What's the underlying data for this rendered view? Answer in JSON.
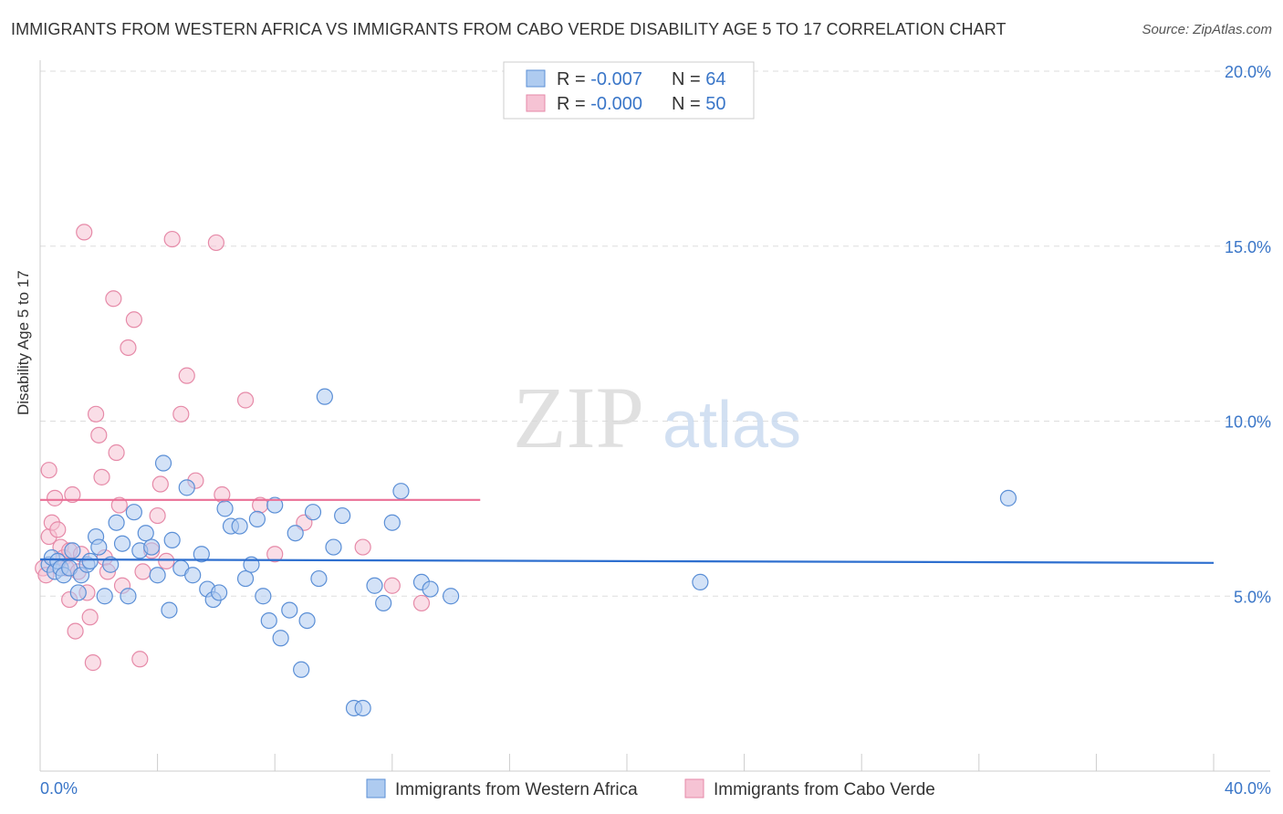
{
  "title": "IMMIGRANTS FROM WESTERN AFRICA VS IMMIGRANTS FROM CABO VERDE DISABILITY AGE 5 TO 17 CORRELATION CHART",
  "source": "Source: ZipAtlas.com",
  "watermark": {
    "zip": "ZIP",
    "atlas": "atlas"
  },
  "colors": {
    "blue": "#5b8fd6",
    "blue_fill": "#aecbf0",
    "blue_line": "#2e6fcf",
    "pink": "#e68aa8",
    "pink_fill": "#f6c3d4",
    "pink_line": "#ea6f96",
    "axis_text": "#3a76c8"
  },
  "legend": {
    "rows": [
      {
        "r_label": "R = ",
        "r_value": "-0.007",
        "n_label": "N = ",
        "n_value": "64"
      },
      {
        "r_label": "R = ",
        "r_value": "-0.000",
        "n_label": "N = ",
        "n_value": "50"
      }
    ]
  },
  "chart_data": {
    "type": "scatter",
    "xlabel": "",
    "ylabel": "Disability Age 5 to 17",
    "xlim": [
      0,
      40
    ],
    "ylim": [
      0,
      20
    ],
    "x_tick_labels": [
      "0.0%",
      "40.0%"
    ],
    "y_tick_labels": [
      "5.0%",
      "10.0%",
      "15.0%",
      "20.0%"
    ],
    "y_ticks": [
      5,
      10,
      15,
      20
    ],
    "legend": [
      "Immigrants from Western Africa",
      "Immigrants from Cabo Verde"
    ],
    "series": [
      {
        "name": "Immigrants from Western Africa",
        "trend": {
          "x": [
            0,
            40
          ],
          "y": [
            6.05,
            5.95
          ]
        },
        "x": [
          0.3,
          0.4,
          0.5,
          0.6,
          0.7,
          0.8,
          1.0,
          1.1,
          1.3,
          1.4,
          1.6,
          1.7,
          1.9,
          2.0,
          2.2,
          2.4,
          2.6,
          2.8,
          3.0,
          3.2,
          3.4,
          3.6,
          3.8,
          4.0,
          4.2,
          4.4,
          4.5,
          4.8,
          5.0,
          5.2,
          5.5,
          5.7,
          5.9,
          6.1,
          6.3,
          6.5,
          6.8,
          7.0,
          7.2,
          7.4,
          7.6,
          7.8,
          8.0,
          8.2,
          8.5,
          8.7,
          8.9,
          9.1,
          9.3,
          9.5,
          9.7,
          10.0,
          10.3,
          10.7,
          11.0,
          11.4,
          11.7,
          12.0,
          12.3,
          13.0,
          13.3,
          14.0,
          22.5,
          33.0
        ],
        "y": [
          5.9,
          6.1,
          5.7,
          6.0,
          5.8,
          5.6,
          5.8,
          6.3,
          5.1,
          5.6,
          5.9,
          6.0,
          6.7,
          6.4,
          5.0,
          5.9,
          7.1,
          6.5,
          5.0,
          7.4,
          6.3,
          6.8,
          6.4,
          5.6,
          8.8,
          4.6,
          6.6,
          5.8,
          8.1,
          5.6,
          6.2,
          5.2,
          4.9,
          5.1,
          7.5,
          7.0,
          7.0,
          5.5,
          5.9,
          7.2,
          5.0,
          4.3,
          7.6,
          3.8,
          4.6,
          6.8,
          2.9,
          4.3,
          7.4,
          5.5,
          10.7,
          6.4,
          7.3,
          1.8,
          1.8,
          5.3,
          4.8,
          7.1,
          8.0,
          5.4,
          5.2,
          5.0,
          5.4,
          7.8
        ]
      },
      {
        "name": "Immigrants from Cabo Verde",
        "trend": {
          "x": [
            0,
            15
          ],
          "y": [
            7.75,
            7.75
          ]
        },
        "x": [
          0.1,
          0.2,
          0.3,
          0.3,
          0.4,
          0.5,
          0.6,
          0.7,
          0.8,
          0.9,
          1.0,
          1.0,
          1.1,
          1.2,
          1.3,
          1.4,
          1.5,
          1.6,
          1.7,
          1.8,
          1.9,
          2.0,
          2.1,
          2.2,
          2.3,
          2.5,
          2.6,
          2.7,
          2.8,
          3.0,
          3.2,
          3.4,
          3.5,
          3.8,
          4.0,
          4.1,
          4.3,
          4.5,
          4.8,
          5.0,
          5.3,
          6.0,
          6.2,
          7.0,
          7.5,
          8.0,
          9.0,
          11.0,
          12.0,
          13.0
        ],
        "y": [
          5.8,
          5.6,
          6.7,
          8.6,
          7.1,
          7.8,
          6.9,
          6.4,
          6.1,
          5.8,
          4.9,
          6.3,
          7.9,
          4.0,
          5.7,
          6.2,
          15.4,
          5.1,
          4.4,
          3.1,
          10.2,
          9.6,
          8.4,
          6.1,
          5.7,
          13.5,
          9.1,
          7.6,
          5.3,
          12.1,
          12.9,
          3.2,
          5.7,
          6.3,
          7.3,
          8.2,
          6.0,
          15.2,
          10.2,
          11.3,
          8.3,
          15.1,
          7.9,
          10.6,
          7.6,
          6.2,
          7.1,
          6.4,
          5.3,
          4.8
        ]
      }
    ]
  }
}
